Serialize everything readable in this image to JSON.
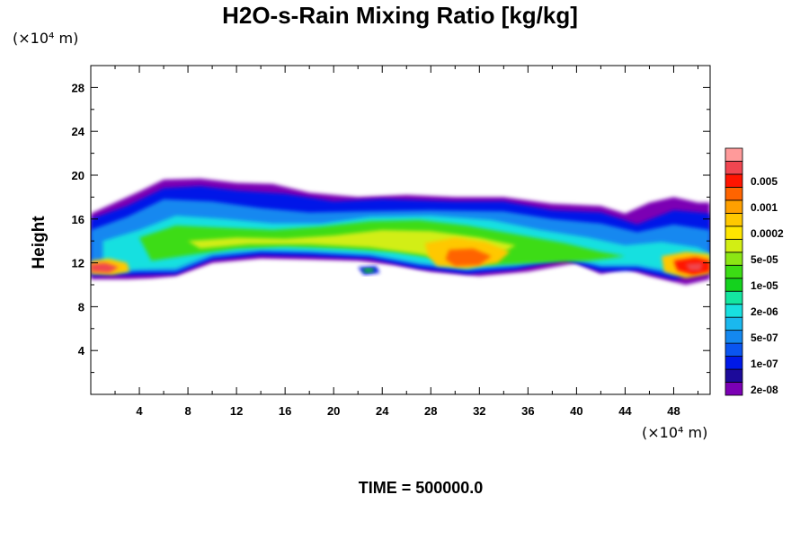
{
  "chart_data": {
    "type": "heatmap",
    "title": "H2O-s-Rain Mixing Ratio [kg/kg]",
    "ylabel": "Height",
    "xlabel": "",
    "y_unit_label": "(×10⁴ m)",
    "x_unit_label": "(×10⁴ m)",
    "xlim": [
      0,
      51
    ],
    "ylim": [
      0,
      30
    ],
    "x_ticks": [
      "4",
      "8",
      "12",
      "16",
      "20",
      "24",
      "28",
      "32",
      "36",
      "40",
      "44",
      "48"
    ],
    "y_ticks": [
      "4",
      "8",
      "12",
      "16",
      "20",
      "24",
      "28"
    ],
    "time_label": "TIME = 500000.0",
    "colorbar": {
      "colors": [
        "#7b00b4",
        "#1c0a9a",
        "#0019e8",
        "#0a55f0",
        "#1488f0",
        "#1ab8ee",
        "#18e0e0",
        "#14e6a0",
        "#14d21e",
        "#3cdc14",
        "#8ce614",
        "#d2ee14",
        "#ffe600",
        "#ffc800",
        "#ffa000",
        "#ff6400",
        "#ff1400",
        "#f04650",
        "#ff9a9a"
      ],
      "labels": [
        "2e-08",
        "1e-07",
        "5e-07",
        "2e-06",
        "1e-05",
        "5e-05",
        "0.0002",
        "0.001",
        "0.005"
      ]
    },
    "field": {
      "cloud_band_base_km": 10.5,
      "cloud_band_top_km": 19.5,
      "max_values": [
        {
          "x": 1,
          "y": 11.5,
          "value": "0.005"
        },
        {
          "x": 31,
          "y": 12.5,
          "value": "0.001"
        },
        {
          "x": 49,
          "y": 11.5,
          "value": "0.005"
        }
      ]
    },
    "grid": false,
    "legend": "right"
  }
}
